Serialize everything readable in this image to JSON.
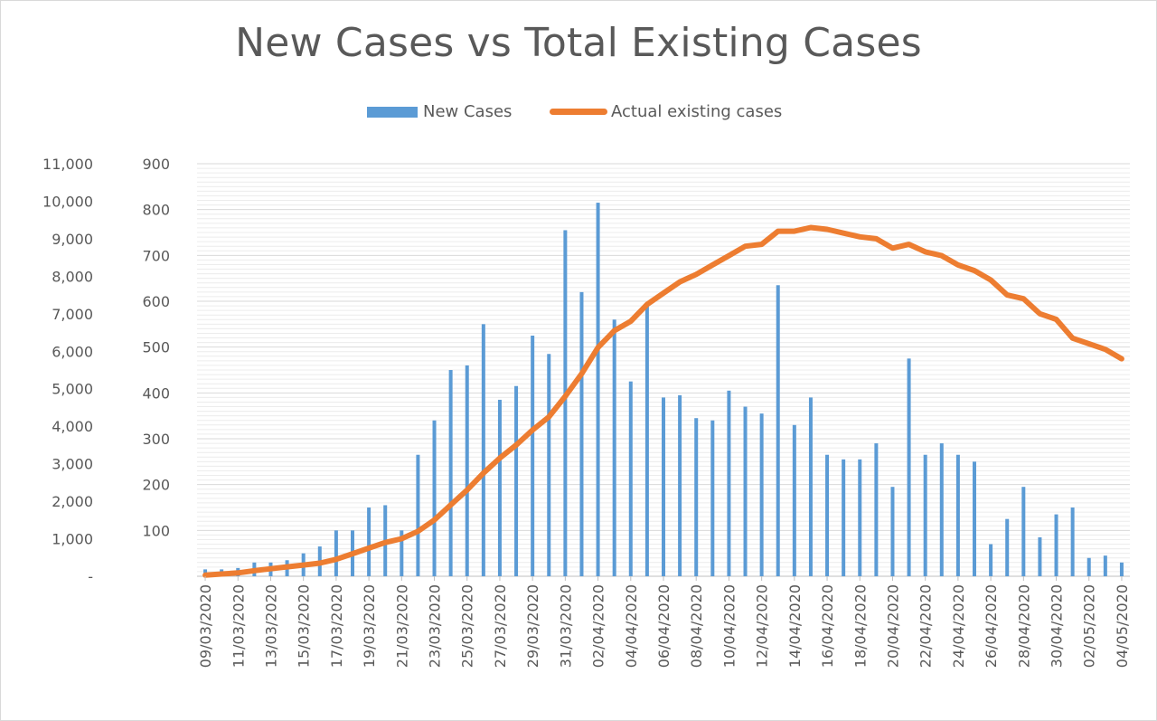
{
  "chart_data": {
    "type": "bar+line",
    "title": "New Cases vs Total Existing Cases",
    "legend": {
      "placement": "top",
      "entries": [
        "New Cases",
        "Actual existing cases"
      ]
    },
    "grid": true,
    "x": [
      "09/03/2020",
      "10/03/2020",
      "11/03/2020",
      "12/03/2020",
      "13/03/2020",
      "14/03/2020",
      "15/03/2020",
      "16/03/2020",
      "17/03/2020",
      "18/03/2020",
      "19/03/2020",
      "20/03/2020",
      "21/03/2020",
      "22/03/2020",
      "23/03/2020",
      "24/03/2020",
      "25/03/2020",
      "26/03/2020",
      "27/03/2020",
      "28/03/2020",
      "29/03/2020",
      "30/03/2020",
      "31/03/2020",
      "01/04/2020",
      "02/04/2020",
      "03/04/2020",
      "04/04/2020",
      "05/04/2020",
      "06/04/2020",
      "07/04/2020",
      "08/04/2020",
      "09/04/2020",
      "10/04/2020",
      "11/04/2020",
      "12/04/2020",
      "13/04/2020",
      "14/04/2020",
      "15/04/2020",
      "16/04/2020",
      "17/04/2020",
      "18/04/2020",
      "19/04/2020",
      "20/04/2020",
      "21/04/2020",
      "22/04/2020",
      "23/04/2020",
      "24/04/2020",
      "25/04/2020",
      "26/04/2020",
      "27/04/2020",
      "28/04/2020",
      "29/04/2020",
      "30/04/2020",
      "01/05/2020",
      "02/05/2020",
      "03/05/2020",
      "04/05/2020"
    ],
    "x_tick_labels": [
      "09/03/2020",
      "11/03/2020",
      "13/03/2020",
      "15/03/2020",
      "17/03/2020",
      "19/03/2020",
      "21/03/2020",
      "23/03/2020",
      "25/03/2020",
      "27/03/2020",
      "29/03/2020",
      "31/03/2020",
      "02/04/2020",
      "04/04/2020",
      "06/04/2020",
      "08/04/2020",
      "10/04/2020",
      "12/04/2020",
      "14/04/2020",
      "16/04/2020",
      "18/04/2020",
      "20/04/2020",
      "22/04/2020",
      "24/04/2020",
      "26/04/2020",
      "28/04/2020",
      "30/04/2020",
      "02/05/2020",
      "04/05/2020"
    ],
    "y_left": {
      "ticks": [
        "-",
        "1,000",
        "2,000",
        "3,000",
        "4,000",
        "5,000",
        "6,000",
        "7,000",
        "8,000",
        "9,000",
        "10,000",
        "11,000"
      ],
      "ylim": [
        0,
        11000
      ]
    },
    "y_right": {
      "ticks": [
        "",
        "100",
        "200",
        "300",
        "400",
        "500",
        "600",
        "700",
        "800",
        "900"
      ],
      "ylim": [
        0,
        900
      ]
    },
    "series": [
      {
        "name": "New Cases",
        "type": "bar",
        "axis": "right",
        "color": "#5b9bd5",
        "values": [
          15,
          15,
          18,
          30,
          30,
          35,
          50,
          65,
          100,
          100,
          150,
          155,
          100,
          265,
          340,
          450,
          460,
          550,
          385,
          415,
          525,
          485,
          755,
          620,
          815,
          560,
          425,
          590,
          390,
          395,
          345,
          340,
          405,
          370,
          355,
          635,
          330,
          390,
          265,
          255,
          255,
          290,
          195,
          475,
          265,
          290,
          265,
          250,
          70,
          125,
          195,
          85,
          135,
          150,
          40,
          45,
          30
        ]
      },
      {
        "name": "Actual existing cases",
        "type": "line",
        "axis": "left",
        "color": "#ed7d31",
        "values": [
          30,
          60,
          90,
          150,
          200,
          250,
          300,
          350,
          450,
          600,
          750,
          900,
          1000,
          1200,
          1500,
          1900,
          2300,
          2750,
          3150,
          3500,
          3900,
          4250,
          4800,
          5400,
          6100,
          6550,
          6800,
          7250,
          7550,
          7850,
          8050,
          8300,
          8550,
          8800,
          8850,
          9200,
          9200,
          9300,
          9250,
          9150,
          9050,
          9000,
          8750,
          8850,
          8650,
          8550,
          8300,
          8150,
          7900,
          7500,
          7400,
          7000,
          6850,
          6350,
          6200,
          6050,
          5800
        ]
      }
    ]
  }
}
